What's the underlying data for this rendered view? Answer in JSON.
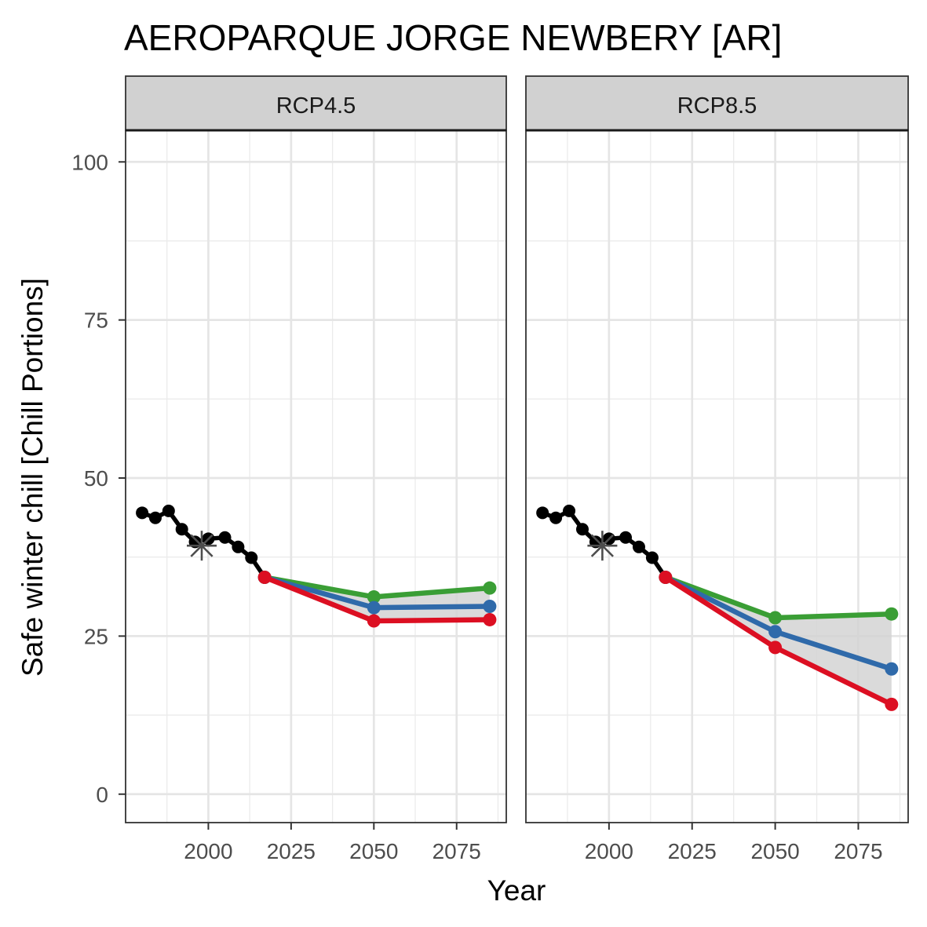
{
  "chart_data": {
    "type": "line",
    "title": "AEROPARQUE JORGE NEWBERY [AR]",
    "xlabel": "Year",
    "ylabel": "Safe winter chill [Chill Portions]",
    "xlim": [
      1975,
      2090
    ],
    "ylim": [
      -4.5,
      105
    ],
    "x_ticks": [
      2000,
      2025,
      2050,
      2075
    ],
    "y_ticks": [
      0,
      25,
      50,
      75,
      100
    ],
    "grid": true,
    "colors": {
      "historic": "#000000",
      "scenario_high": "#3a9e35",
      "scenario_mid": "#2f6aaa",
      "scenario_low": "#dc0f22",
      "band": "#d3d3d3",
      "baseline_marker": "#4d4d4d",
      "strip_fill": "#d1d1d1"
    },
    "historic": {
      "x": [
        1980,
        1984,
        1988,
        1992,
        1996,
        2000,
        2005,
        2009,
        2013,
        2017
      ],
      "y": [
        44.5,
        43.7,
        44.8,
        41.9,
        39.9,
        40.4,
        40.6,
        39.1,
        37.4,
        34.3
      ]
    },
    "baseline": {
      "x": 1998,
      "y": 39.3
    },
    "panels": [
      {
        "label": "RCP4.5",
        "x": [
          2017,
          2050,
          2085
        ],
        "series": [
          {
            "key": "high",
            "values": [
              34.3,
              31.2,
              32.6
            ]
          },
          {
            "key": "mid",
            "values": [
              34.3,
              29.5,
              29.7
            ]
          },
          {
            "key": "low",
            "values": [
              34.3,
              27.4,
              27.6
            ]
          }
        ]
      },
      {
        "label": "RCP8.5",
        "x": [
          2017,
          2050,
          2085
        ],
        "series": [
          {
            "key": "high",
            "values": [
              34.3,
              27.9,
              28.5
            ]
          },
          {
            "key": "mid",
            "values": [
              34.3,
              25.7,
              19.8
            ]
          },
          {
            "key": "low",
            "values": [
              34.3,
              23.2,
              14.2
            ]
          }
        ]
      }
    ]
  }
}
